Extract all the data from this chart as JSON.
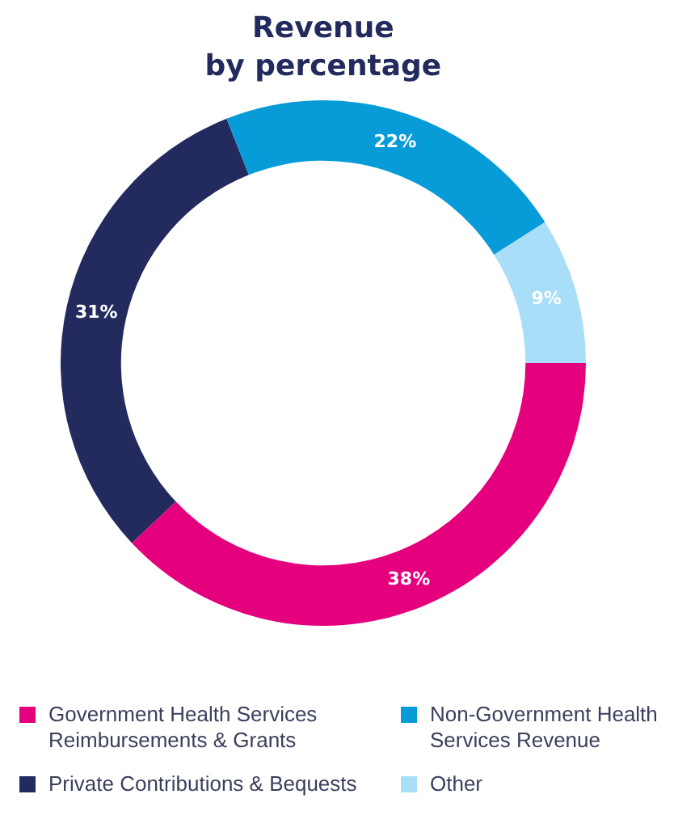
{
  "chart_data": {
    "type": "donut",
    "title": "Revenue\nby percentage",
    "categories": [
      "Government Health Services Reimbursements & Grants",
      "Private Contributions & Bequests",
      "Non-Government Health Services Revenue",
      "Other"
    ],
    "values": [
      38,
      31,
      22,
      9
    ],
    "colors": [
      "#e5007e",
      "#222a5e",
      "#079bd8",
      "#a8def7"
    ],
    "value_labels": [
      "38%",
      "31%",
      "22%",
      "9%"
    ],
    "legend": "bottom"
  }
}
